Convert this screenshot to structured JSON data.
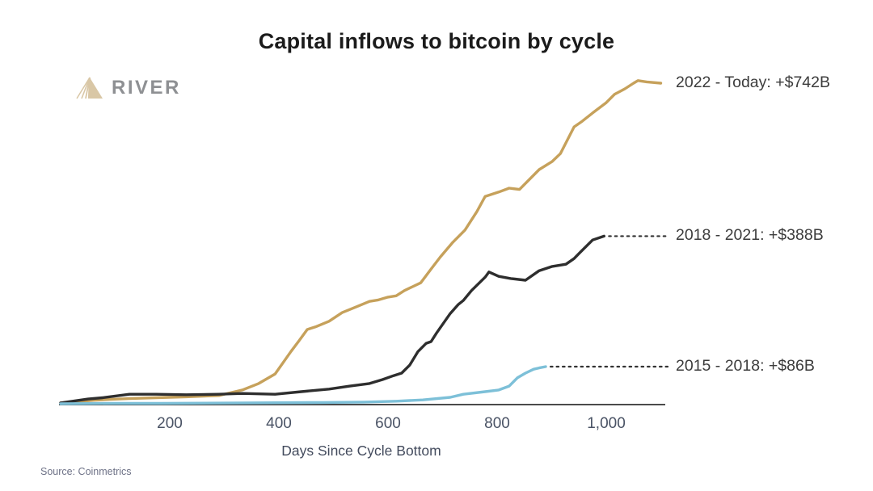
{
  "page": {
    "title": "Capital inflows to bitcoin by cycle"
  },
  "logo": {
    "brand": "RIVER",
    "icon": "river-mountain-icon"
  },
  "source_note": "Source: Coinmetrics",
  "chart_data": {
    "type": "line",
    "title": "Capital inflows to bitcoin by cycle",
    "xlabel": "Days Since Cycle Bottom",
    "ylabel": "",
    "x_unit": "days",
    "y_unit": "billions USD",
    "xlim": [
      0,
      1120
    ],
    "ylim": [
      0,
      780
    ],
    "grid": false,
    "legend_position": "right-edge-annotations",
    "x_ticks": [
      {
        "day": 200,
        "label": "200"
      },
      {
        "day": 400,
        "label": "400"
      },
      {
        "day": 600,
        "label": "600"
      },
      {
        "day": 800,
        "label": "800"
      },
      {
        "day": 1000,
        "label": "1,000"
      }
    ],
    "series": [
      {
        "name": "2022 - Today",
        "label": "2022 - Today: +$742B",
        "final_value_billions": 742,
        "color": "#C6A15B",
        "leader_dotted": false,
        "points": [
          [
            0,
            2
          ],
          [
            30,
            5
          ],
          [
            60,
            8
          ],
          [
            90,
            10
          ],
          [
            125,
            12
          ],
          [
            175,
            14
          ],
          [
            230,
            16
          ],
          [
            290,
            19
          ],
          [
            333,
            32
          ],
          [
            363,
            47
          ],
          [
            393,
            69
          ],
          [
            422,
            121
          ],
          [
            437,
            146
          ],
          [
            452,
            172
          ],
          [
            467,
            178
          ],
          [
            492,
            191
          ],
          [
            516,
            211
          ],
          [
            541,
            224
          ],
          [
            566,
            237
          ],
          [
            581,
            240
          ],
          [
            600,
            247
          ],
          [
            615,
            250
          ],
          [
            630,
            262
          ],
          [
            645,
            271
          ],
          [
            660,
            280
          ],
          [
            679,
            312
          ],
          [
            696,
            340
          ],
          [
            719,
            374
          ],
          [
            741,
            402
          ],
          [
            763,
            445
          ],
          [
            778,
            480
          ],
          [
            803,
            490
          ],
          [
            822,
            499
          ],
          [
            841,
            496
          ],
          [
            852,
            510
          ],
          [
            877,
            542
          ],
          [
            901,
            561
          ],
          [
            916,
            579
          ],
          [
            926,
            604
          ],
          [
            941,
            641
          ],
          [
            956,
            654
          ],
          [
            975,
            673
          ],
          [
            1000,
            697
          ],
          [
            1015,
            716
          ],
          [
            1034,
            729
          ],
          [
            1050,
            742
          ],
          [
            1058,
            748
          ],
          [
            1074,
            745
          ],
          [
            1100,
            742
          ]
        ]
      },
      {
        "name": "2018 - 2021",
        "label": "2018 - 2021: +$388B",
        "final_value_billions": 388,
        "color": "#2E2E2E",
        "leader_dotted": true,
        "points": [
          [
            0,
            2
          ],
          [
            50,
            11
          ],
          [
            77,
            14
          ],
          [
            126,
            22
          ],
          [
            175,
            22
          ],
          [
            230,
            21
          ],
          [
            289,
            22
          ],
          [
            333,
            24
          ],
          [
            393,
            22
          ],
          [
            441,
            28
          ],
          [
            492,
            34
          ],
          [
            530,
            41
          ],
          [
            566,
            47
          ],
          [
            590,
            56
          ],
          [
            610,
            65
          ],
          [
            625,
            71
          ],
          [
            640,
            90
          ],
          [
            655,
            121
          ],
          [
            670,
            140
          ],
          [
            679,
            144
          ],
          [
            689,
            164
          ],
          [
            714,
            209
          ],
          [
            729,
            230
          ],
          [
            738,
            239
          ],
          [
            753,
            262
          ],
          [
            778,
            293
          ],
          [
            785,
            305
          ],
          [
            803,
            295
          ],
          [
            825,
            290
          ],
          [
            852,
            286
          ],
          [
            877,
            308
          ],
          [
            901,
            318
          ],
          [
            926,
            323
          ],
          [
            941,
            336
          ],
          [
            951,
            349
          ],
          [
            975,
            379
          ],
          [
            996,
            388
          ]
        ]
      },
      {
        "name": "2015 - 2018",
        "label": "2015 - 2018: +$86B",
        "final_value_billions": 86,
        "color": "#7DC0D8",
        "leader_dotted": true,
        "points": [
          [
            0,
            0
          ],
          [
            100,
            1
          ],
          [
            185,
            1
          ],
          [
            333,
            2
          ],
          [
            481,
            3
          ],
          [
            556,
            4
          ],
          [
            615,
            6
          ],
          [
            664,
            9
          ],
          [
            714,
            15
          ],
          [
            738,
            22
          ],
          [
            778,
            28
          ],
          [
            803,
            32
          ],
          [
            822,
            41
          ],
          [
            837,
            60
          ],
          [
            852,
            71
          ],
          [
            867,
            80
          ],
          [
            877,
            83
          ],
          [
            889,
            86
          ]
        ]
      }
    ]
  }
}
